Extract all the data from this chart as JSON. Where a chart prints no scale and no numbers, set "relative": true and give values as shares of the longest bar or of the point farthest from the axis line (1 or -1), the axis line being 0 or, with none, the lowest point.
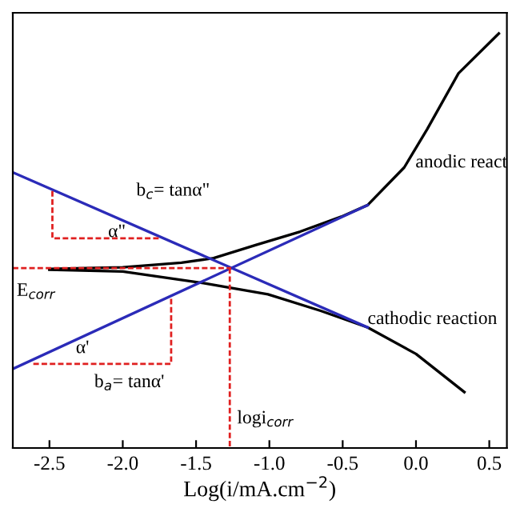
{
  "chart_data": {
    "type": "line",
    "relative": true,
    "xlabel": "Log(i/mA.cm$^{−2}$)",
    "xlim": [
      -2.75,
      0.62
    ],
    "xticks": [
      -2.5,
      {
        "value": -2,
        "label": "-2.0"
      },
      -1.5,
      {
        "value": -1,
        "label": "-1.0"
      },
      -0.5,
      {
        "value": 0,
        "label": "0.0"
      },
      0.5
    ],
    "tick_labels": "x",
    "grid": false,
    "line_style": "solid",
    "series": [
      {
        "color": "#000000",
        "x": [
          -2.5,
          -2.0,
          -1.6,
          -1.38,
          -1.09,
          -0.79,
          -0.51,
          -0.33,
          -0.08,
          0.076,
          0.29,
          0.565
        ],
        "values": [
          0.432,
          0.436,
          0.447,
          0.458,
          0.49,
          0.522,
          0.558,
          0.586,
          0.677,
          0.769,
          0.904,
          1.0
        ]
      },
      {
        "color": "#000000",
        "x": [
          -2.5,
          -2.0,
          -1.45,
          -1.01,
          -0.65,
          -0.33,
          0.0,
          0.33
        ],
        "values": [
          0.43,
          0.426,
          0.398,
          0.371,
          0.331,
          0.291,
          0.227,
          0.135
        ]
      },
      {
        "color": "#2b2bb8",
        "x": [
          -2.75,
          -0.33
        ],
        "values": [
          0.191,
          0.586
        ]
      },
      {
        "color": "#2b2bb8",
        "x": [
          -2.75,
          -0.33
        ],
        "values": [
          0.665,
          0.291
        ]
      },
      {
        "color": "#e02020",
        "line_style": "dashed",
        "x": [
          -2.75,
          -1.26
        ],
        "values": [
          0.434,
          0.434
        ]
      },
      {
        "color": "#e02020",
        "line_style": "dashed",
        "x": [
          -1.27,
          -1.27
        ],
        "values": [
          0.434,
          0.0
        ]
      },
      {
        "color": "#e02020",
        "line_style": "dashed",
        "x": [
          -2.48,
          -2.48,
          -1.74
        ],
        "values": [
          0.62,
          0.506,
          0.506
        ]
      },
      {
        "color": "#e02020",
        "line_style": "dashed",
        "x": [
          -2.61,
          -1.67,
          -1.67
        ],
        "values": [
          0.203,
          0.203,
          0.363
        ]
      }
    ],
    "annotations": [
      "b$_{c}$= tanα\"",
      {
        "text": "α\"",
        "x": -2.1,
        "y": 0.52
      },
      "b$_{a}$= tanα'",
      {
        "text": "α'",
        "x": -2.32,
        "y": 0.24
      },
      "E$_{corr}$",
      {
        "text": "logi$_{corr}$",
        "x": -1.22,
        "y": 0.07
      },
      "anodic react",
      {
        "text": "cathodic reaction",
        "x": -0.33,
        "y": 0.31
      }
    ]
  }
}
